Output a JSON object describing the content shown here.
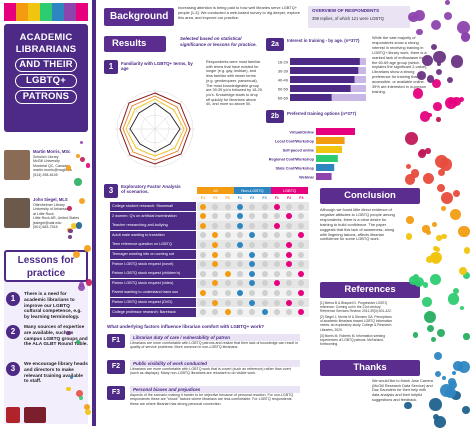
{
  "left": {
    "title_lines": [
      "ACADEMIC",
      "LIBRARIANS",
      "AND THEIR",
      "LGBTQ+",
      "PATRONS"
    ],
    "authors": [
      {
        "name": "Martin Morris, MSc",
        "lines": [
          "Schulich Library",
          "McGill University",
          "Montréal QC, Canada",
          "martin.morris@mcgill.ca",
          "(514) 398-8145"
        ]
      },
      {
        "name": "John Siegel, MLS",
        "lines": [
          "Ottenheimer Library",
          "University of Arkansas",
          "at Little Rock",
          "Little Rock AR, United States",
          "jssiegel@ualr.edu",
          "(501) 683-7516"
        ]
      }
    ],
    "lessons_title": "Lessons for practice",
    "lessons": [
      {
        "num": "1",
        "text": "There is a need for academic librarians to improve our LGBTQ cultural competence, e.g. by learning terminology."
      },
      {
        "num": "2",
        "text": "Many sources of expertise are available, such as campus LGBTQ groups and the ALA GLBT Round Table."
      },
      {
        "num": "3",
        "text": "We encourage library heads and directors to make relevant training available to staff."
      }
    ]
  },
  "background": {
    "header": "Background",
    "text": "Increasing attention is being paid to how well libraries serve LGBTQ+ people [1-3]. We conducted a web-based survey to dig deeper, explore this area, and improve our practice.",
    "overview_title": "OVERVIEW OF RESPONDENTS",
    "overview_text": "398 replies, of which 121 were LGBTQ"
  },
  "results": {
    "header": "Results",
    "note": "Selected based on statistical significance or lessons for practice.",
    "s1_num": "1",
    "s1_title": "Familiarity with LGBTQ+ terms, by age",
    "s1_text": "Respondents were most familiar with terms that have existed for longer (e.g. gay, lesbian), and less familiar with newer terms (e.g. genderqueer, pansexual). The most knowledgeable group are 39-39 y/o's followed by 18-25 y/o's. Knowledge starts to drop off quickly for librarians above 40, and more so above 50.",
    "s2a_num": "2a",
    "s2a_title": "Interest in training - by age. (n=377)",
    "s2b_num": "2b",
    "s2b_title": "Preferred training options (n=377)",
    "training_options": [
      "Virtual/Online",
      "Local Conf/Workshop",
      "Self-paced online",
      "Regional Conf/Workshop",
      "State Conf/Workshop",
      "Webinar"
    ],
    "side_text": "While the vast majority of respondents show a strong interest in receiving training in LGBTQ+ library work, there is a marked lack of enthusiasm for the 60-69 age group (which explains the significant 2-value). Librarians show a strong preference for training that is accessible, or available online. 39% are interested in in-person training.",
    "s3_num": "3",
    "s3_title": "Exploratory Factor Analysis of scenarios.",
    "legend": [
      "All",
      "Non-LGBTQ",
      "LGBTQ"
    ],
    "factor_cols": [
      "F1",
      "F2",
      "F3"
    ],
    "scenarios": [
      "College student research: Stonewall",
      "2 women: Q's on artificial insemination",
      "Teacher researching anti-bullying",
      "Adult male wanting to transition",
      "Teen reference question on LGBTQ",
      "Teenager wanting info on coming out",
      "Patron LGBTQ stock request (novel)",
      "Patron LGBTQ stock request (children's)",
      "Patron LGBTQ stock request (video)",
      "Parent wanting to understand trans son",
      "Patron LGBTQ stock request (DVD)",
      "College professor research: Bareback"
    ],
    "factors_question": "What underlying factors influence librarian comfort with LGBTQ+ work?",
    "factors": [
      {
        "id": "F1",
        "title": "Librarian duty of care / vulnerability of patron",
        "text": "Librarians are more comfortable with LGBTQ patrons and realize that their lack of knowledge can result in quality of service problems. More common in non-LGBTQ librarians."
      },
      {
        "id": "F2",
        "title": "Public visibility of work conducted",
        "text": "Librarians are more comfortable with LGBTQ work that is covert (such as reference) rather than overt (such as displays). Many non-LGBTQ librarians are reluctant to do visible work."
      },
      {
        "id": "F3",
        "title": "Personal biases and prejudices",
        "text": "Aspects of the scenario making it harder to be objective because of personal reaction. For non-LGBTQ respondents these are \"shock\" factors where librarians are less comfortable. For LGBTQ respondents these are where librarian has strong personal connection."
      }
    ]
  },
  "conclusion": {
    "header": "Conclusion",
    "text": "Although we found little direct evidence of negative attitudes to LGBTQ people among respondents, there is a clear desire for training to build confidence. The paper suggests that this lack of awareness, along with lingering taboos, affects librarian confidence for some LGBTQ work."
  },
  "references": {
    "header": "References",
    "items": [
      "[1] Mehra B & Braquet D. Progressive LGBTQ reference: Coming out in the 21st century. Reference Services Review. 2011;39(3):401-422.",
      "[2] Siegel J, Morris M & Stevens GA. Perceptions of academic librarians toward LGBTQ information needs: an exploratory study. College & Research Libraries, 2020.",
      "[3] Morris M, Roberts M. Information seeking experiences of LGBTQ patrons. McFarland, forthcoming."
    ]
  },
  "thanks": {
    "header": "Thanks",
    "text": "We would like to thank Jose Carrera (McGill Research Data Service) and Daz Saunders for their help with data analysis and their helpful suggestions and feedback."
  },
  "chart_data": [
    {
      "type": "bar",
      "title": "Preferred training options (n=377)",
      "categories": [
        "Virtual/Online",
        "Local Conf/Workshop",
        "Self-paced online",
        "Regional Conf/Workshop",
        "State Conf/Workshop",
        "Webinar"
      ],
      "values": [
        0.75,
        0.55,
        0.5,
        0.42,
        0.35,
        0.3
      ]
    },
    {
      "type": "bar",
      "title": "Interest in training - by age. (n=377)",
      "categories": [
        "18-29",
        "30-39",
        "40-49",
        "50-59",
        "60-69"
      ],
      "series": [
        {
          "values": [
            0.92,
            0.9,
            0.85,
            0.8,
            0.55
          ]
        },
        {
          "values": [
            0.08,
            0.1,
            0.15,
            0.2,
            0.45
          ]
        }
      ]
    }
  ],
  "colors": {
    "purple": "#4c2a86",
    "header": "#5b2d8e",
    "lgbtq_pink": "#e6007e",
    "nonlgbtq_blue": "#2e86c1",
    "all_orange": "#f39c12"
  },
  "logos": [
    "mcgill-logo",
    "ualr-logo"
  ]
}
